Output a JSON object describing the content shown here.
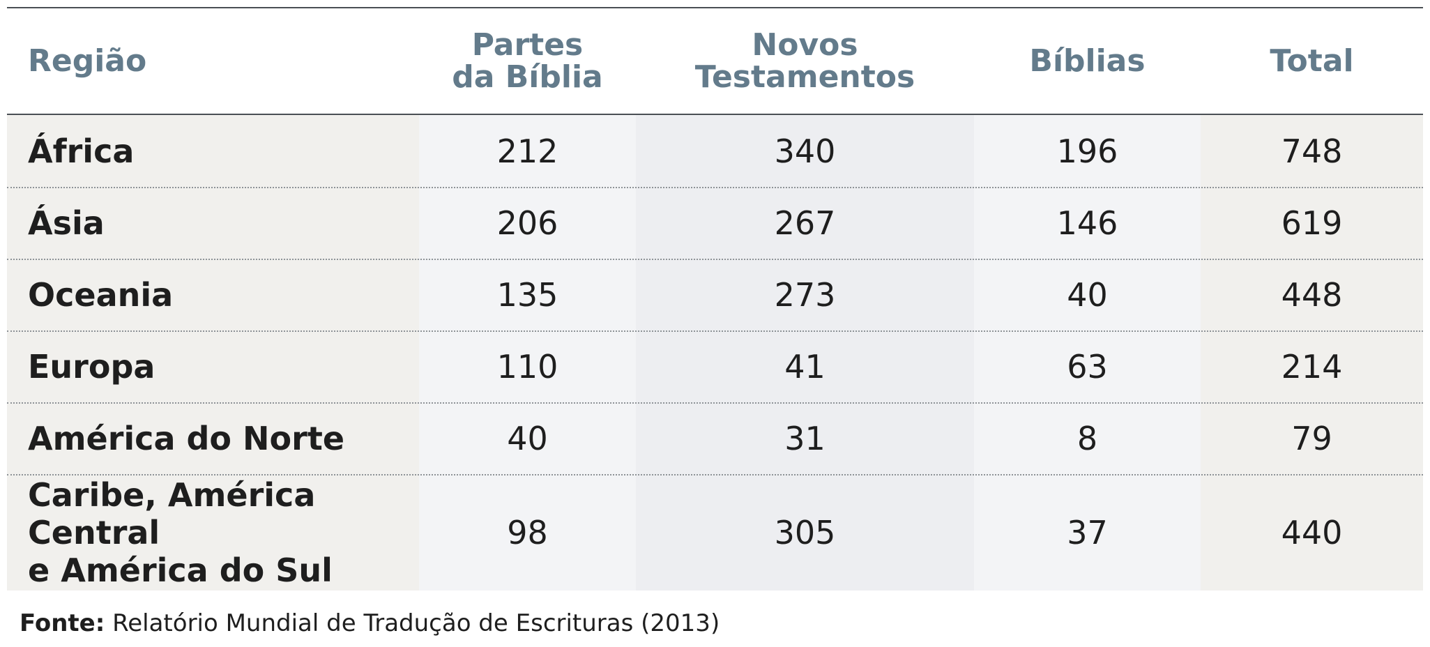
{
  "table": {
    "headers": [
      [
        "Região"
      ],
      [
        "Partes",
        "da Bíblia"
      ],
      [
        "Novos",
        "Testamentos"
      ],
      [
        "Bíblias"
      ],
      [
        "Total"
      ]
    ],
    "rows": [
      {
        "region": [
          "África"
        ],
        "partes": "212",
        "novos": "340",
        "biblias": "196",
        "total": "748"
      },
      {
        "region": [
          "Ásia"
        ],
        "partes": "206",
        "novos": "267",
        "biblias": "146",
        "total": "619"
      },
      {
        "region": [
          "Oceania"
        ],
        "partes": "135",
        "novos": "273",
        "biblias": "40",
        "total": "448"
      },
      {
        "region": [
          "Europa"
        ],
        "partes": "110",
        "novos": "41",
        "biblias": "63",
        "total": "214"
      },
      {
        "region": [
          "América do Norte"
        ],
        "partes": "40",
        "novos": "31",
        "biblias": "8",
        "total": "79"
      },
      {
        "region": [
          "Caribe, América Central",
          "e América do Sul"
        ],
        "partes": "98",
        "novos": "305",
        "biblias": "37",
        "total": "440"
      }
    ]
  },
  "source": {
    "label": "Fonte:",
    "text": " Relatório Mundial de Tradução de Escrituras (2013)"
  },
  "colors": {
    "header_text": "#637b8b",
    "body_text": "#1e1e1e",
    "rule": "#4a4f54"
  }
}
